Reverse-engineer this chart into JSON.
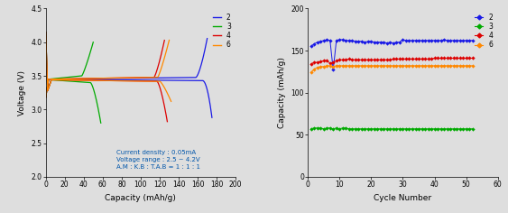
{
  "left_chart": {
    "xlabel": "Capacity (mAh/g)",
    "ylabel": "Voltage (V)",
    "xlim": [
      0,
      200
    ],
    "ylim": [
      2.0,
      4.5
    ],
    "yticks": [
      2.0,
      2.5,
      3.0,
      3.5,
      4.0,
      4.5
    ],
    "xticks": [
      0,
      20,
      40,
      60,
      80,
      100,
      120,
      140,
      160,
      180,
      200
    ],
    "annotation": "Current density : 0.05mA\nVoltage range : 2.5 ~ 4.2V\nA.M : K.B : T.A.B = 1 : 1 : 1",
    "annotation_color": "#0055AA",
    "legend_labels": [
      "2",
      "3",
      "4",
      "6"
    ]
  },
  "right_chart": {
    "xlabel": "Cycle Number",
    "ylabel": "Capacity (mAh/g)",
    "xlim": [
      0,
      60
    ],
    "ylim": [
      0,
      200
    ],
    "yticks": [
      0,
      50,
      100,
      150,
      200
    ],
    "xticks": [
      0,
      10,
      20,
      30,
      40,
      50,
      60
    ],
    "series": {
      "2": {
        "x": [
          1,
          2,
          3,
          4,
          5,
          6,
          7,
          8,
          9,
          10,
          11,
          12,
          13,
          14,
          15,
          16,
          17,
          18,
          19,
          20,
          21,
          22,
          23,
          24,
          25,
          26,
          27,
          28,
          29,
          30,
          31,
          32,
          33,
          34,
          35,
          36,
          37,
          38,
          39,
          40,
          41,
          42,
          43,
          44,
          45,
          46,
          47,
          48,
          49,
          50,
          51,
          52
        ],
        "y": [
          155,
          158,
          160,
          161,
          162,
          163,
          162,
          127,
          162,
          163,
          163,
          162,
          162,
          162,
          161,
          161,
          161,
          160,
          161,
          161,
          160,
          160,
          160,
          160,
          159,
          160,
          159,
          160,
          160,
          163,
          162,
          162,
          162,
          162,
          162,
          162,
          162,
          162,
          162,
          162,
          162,
          162,
          163,
          162,
          162,
          162,
          162,
          162,
          162,
          162,
          162,
          162
        ]
      },
      "3": {
        "x": [
          1,
          2,
          3,
          4,
          5,
          6,
          7,
          8,
          9,
          10,
          11,
          12,
          13,
          14,
          15,
          16,
          17,
          18,
          19,
          20,
          21,
          22,
          23,
          24,
          25,
          26,
          27,
          28,
          29,
          30,
          31,
          32,
          33,
          34,
          35,
          36,
          37,
          38,
          39,
          40,
          41,
          42,
          43,
          44,
          45,
          46,
          47,
          48,
          49,
          50,
          51,
          52
        ],
        "y": [
          57,
          58,
          58,
          58,
          57,
          58,
          58,
          57,
          58,
          57,
          58,
          58,
          57,
          57,
          57,
          57,
          57,
          57,
          57,
          57,
          57,
          57,
          57,
          57,
          57,
          57,
          57,
          57,
          57,
          57,
          57,
          57,
          57,
          57,
          57,
          57,
          57,
          57,
          57,
          57,
          57,
          57,
          57,
          57,
          57,
          57,
          57,
          57,
          57,
          57,
          57,
          57
        ]
      },
      "4": {
        "x": [
          1,
          2,
          3,
          4,
          5,
          6,
          7,
          8,
          9,
          10,
          11,
          12,
          13,
          14,
          15,
          16,
          17,
          18,
          19,
          20,
          21,
          22,
          23,
          24,
          25,
          26,
          27,
          28,
          29,
          30,
          31,
          32,
          33,
          34,
          35,
          36,
          37,
          38,
          39,
          40,
          41,
          42,
          43,
          44,
          45,
          46,
          47,
          48,
          49,
          50,
          51,
          52
        ],
        "y": [
          134,
          136,
          136,
          137,
          138,
          138,
          135,
          136,
          138,
          139,
          139,
          139,
          140,
          139,
          139,
          139,
          139,
          139,
          139,
          139,
          139,
          139,
          139,
          139,
          139,
          139,
          140,
          140,
          140,
          140,
          140,
          140,
          140,
          140,
          140,
          140,
          140,
          140,
          140,
          141,
          141,
          141,
          141,
          141,
          141,
          141,
          141,
          141,
          141,
          141,
          141,
          141
        ]
      },
      "6": {
        "x": [
          1,
          2,
          3,
          4,
          5,
          6,
          7,
          8,
          9,
          10,
          11,
          12,
          13,
          14,
          15,
          16,
          17,
          18,
          19,
          20,
          21,
          22,
          23,
          24,
          25,
          26,
          27,
          28,
          29,
          30,
          31,
          32,
          33,
          34,
          35,
          36,
          37,
          38,
          39,
          40,
          41,
          42,
          43,
          44,
          45,
          46,
          47,
          48,
          49,
          50,
          51,
          52
        ],
        "y": [
          124,
          128,
          130,
          131,
          131,
          132,
          132,
          131,
          132,
          132,
          132,
          132,
          132,
          132,
          132,
          132,
          132,
          132,
          132,
          132,
          132,
          132,
          132,
          132,
          132,
          132,
          132,
          132,
          132,
          132,
          132,
          132,
          132,
          132,
          132,
          132,
          132,
          132,
          132,
          132,
          132,
          132,
          132,
          132,
          132,
          132,
          132,
          132,
          132,
          132,
          132,
          132
        ]
      }
    },
    "legend_labels": [
      "2",
      "3",
      "4",
      "6"
    ]
  },
  "colors": {
    "2": "#1A1AE6",
    "3": "#00AA00",
    "4": "#DD0000",
    "6": "#FF8800"
  },
  "bg_color": "#DEDEDE",
  "plot_bg": "#DEDEDE"
}
